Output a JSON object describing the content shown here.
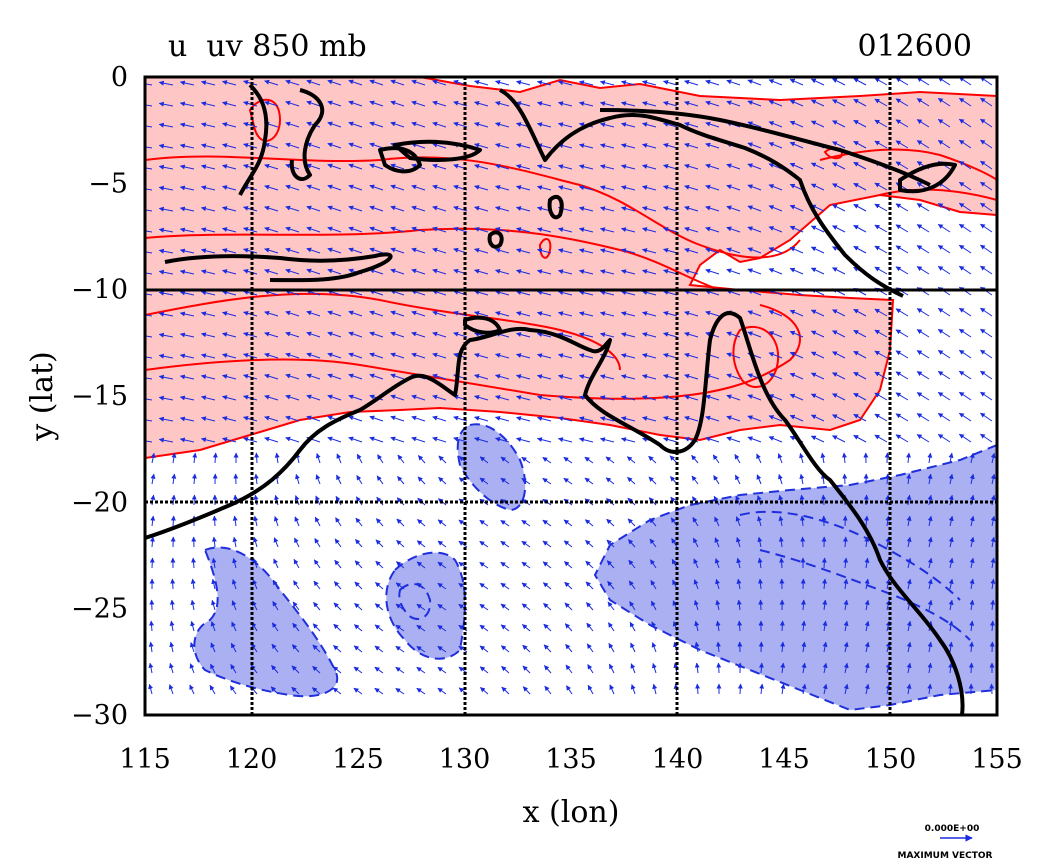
{
  "header": {
    "title": "u  uv 850 mb",
    "timestamp": "012600"
  },
  "axes": {
    "xlabel": "x (lon)",
    "ylabel": "y (lat)",
    "x_ticks": [
      "115",
      "120",
      "125",
      "130",
      "135",
      "140",
      "145",
      "150",
      "155"
    ],
    "y_ticks": [
      "0",
      "−5",
      "−10",
      "−15",
      "−20",
      "−25",
      "−30"
    ]
  },
  "vector_key": {
    "value": "0.000E+00",
    "label": "MAXIMUM VECTOR"
  },
  "colors": {
    "positive_fill": "#ffc6c6",
    "positive_contour": "#ff0000",
    "negative_fill": "#aab0f2",
    "negative_contour": "#1f2fdd",
    "vectors": "#1a2ce0",
    "coastline": "#000000"
  },
  "map_data": {
    "type": "contour-vector",
    "variable": "u",
    "level": "850 mb",
    "xlim": [
      115,
      155
    ],
    "ylim": [
      -30,
      0
    ],
    "grid": true,
    "grid_lon": [
      120,
      130,
      140,
      150
    ],
    "grid_lat": [
      -10,
      -20
    ],
    "positive_u_regions": [
      "north band 0 to -18 lat, 115-152 lon"
    ],
    "negative_u_regions": [
      "east Australia / Coral Sea -17 to -30",
      "central -21 to -27 near 125-129",
      "west -22 to -29 near 117-123",
      "Gulf of Carpentaria south -17 to -19 near 130-133"
    ]
  }
}
